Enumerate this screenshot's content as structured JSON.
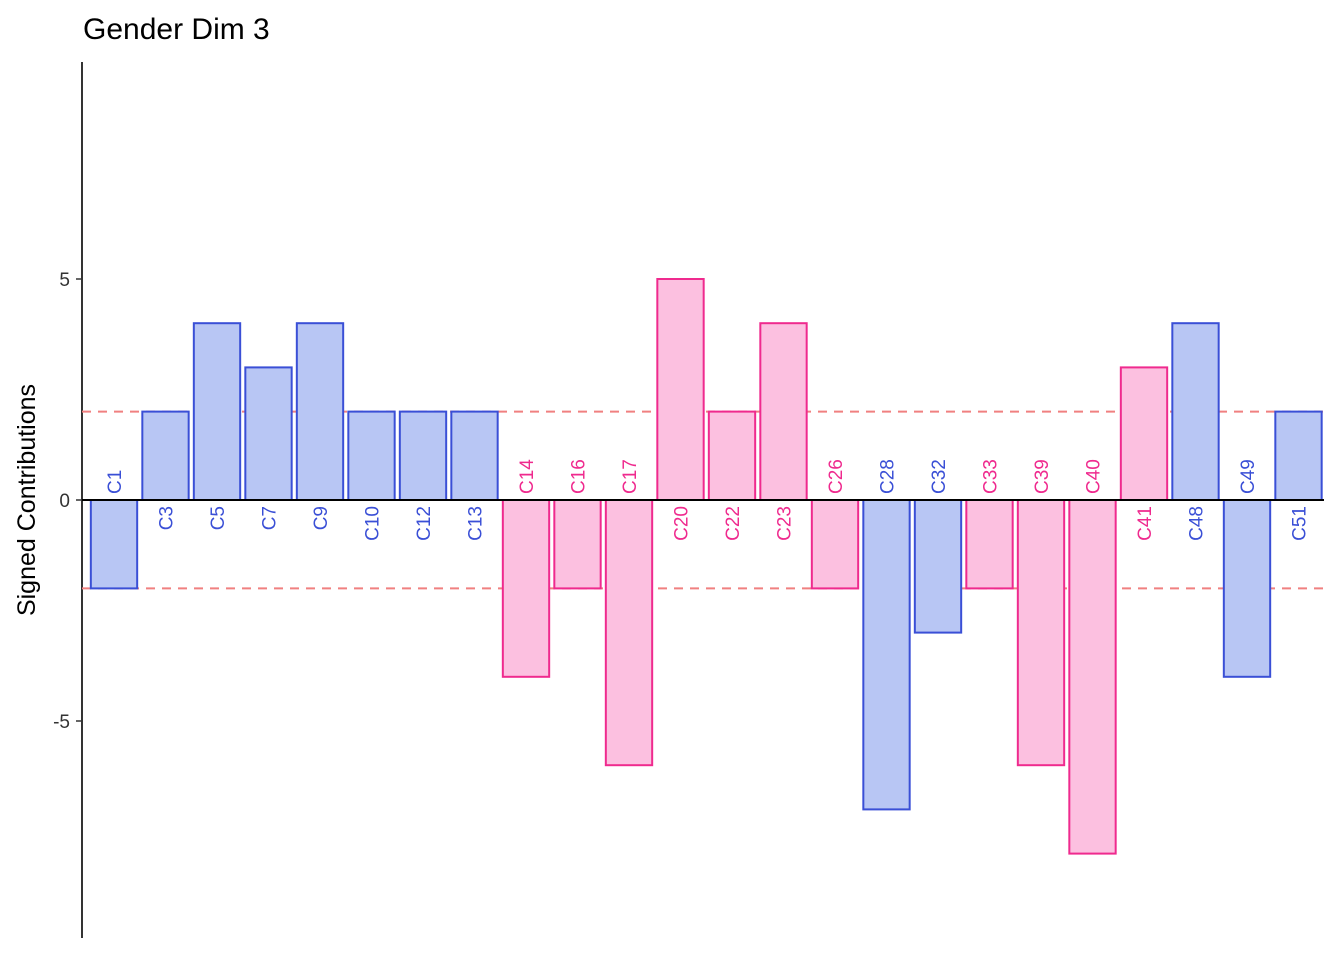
{
  "chart_data": {
    "type": "bar",
    "title": "Gender Dim 3",
    "ylabel": "Signed Contributions",
    "xlabel": "",
    "ylim": [
      -9.8,
      9.8
    ],
    "yticks": [
      5,
      0,
      -5
    ],
    "ytick_labels": [
      "5",
      "0",
      "-5"
    ],
    "threshold_lines": [
      2,
      -2
    ],
    "grid": false,
    "colors": {
      "blue_fill": "#b8c6f4",
      "blue_stroke": "#3a4fd6",
      "pink_fill": "#fcc0e0",
      "pink_stroke": "#ef2a8e",
      "threshold_line": "#f08080",
      "axis": "#000000",
      "tick_text": "#333333"
    },
    "categories": [
      "C1",
      "C3",
      "C5",
      "C7",
      "C9",
      "C10",
      "C12",
      "C13",
      "C14",
      "C16",
      "C17",
      "C20",
      "C22",
      "C23",
      "C26",
      "C28",
      "C32",
      "C33",
      "C39",
      "C40",
      "C41",
      "C48",
      "C49",
      "C51"
    ],
    "values": [
      -2,
      2,
      4,
      3,
      4,
      2,
      2,
      2,
      -4,
      -2,
      -6,
      5,
      2,
      4,
      -2,
      -7,
      -3,
      -2,
      -6,
      -8,
      3,
      4,
      -4,
      2
    ],
    "groups": [
      "blue",
      "blue",
      "blue",
      "blue",
      "blue",
      "blue",
      "blue",
      "blue",
      "pink",
      "pink",
      "pink",
      "pink",
      "pink",
      "pink",
      "pink",
      "blue",
      "blue",
      "pink",
      "pink",
      "pink",
      "pink",
      "blue",
      "blue",
      "blue"
    ]
  }
}
